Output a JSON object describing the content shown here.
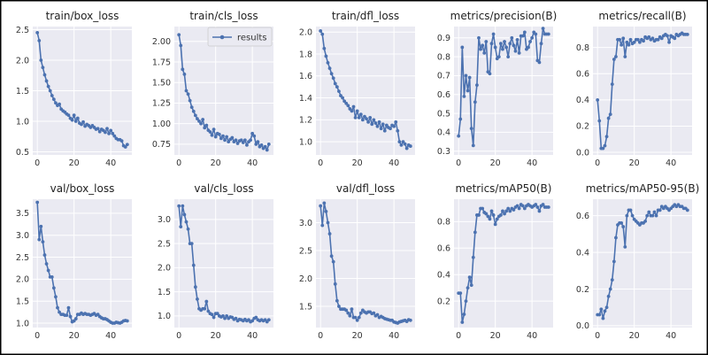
{
  "figure": {
    "legend_label": "results",
    "x_ticks": [
      "0",
      "20",
      "40"
    ]
  },
  "colors": {
    "line": "#4c72b0",
    "axes_bg": "#eaeaf2",
    "grid": "#ffffff",
    "border": "#000000"
  },
  "chart_data": [
    {
      "type": "line",
      "title": "train/box_loss",
      "xlabel": "",
      "ylabel": "",
      "xlim": [
        -2.5,
        51.5
      ],
      "ylim": [
        0.45,
        2.55
      ],
      "yticks": [
        0.5,
        1.0,
        1.5,
        2.0,
        2.5
      ],
      "ytick_labels": [
        "0.5",
        "1.0",
        "1.5",
        "2.0",
        "2.5"
      ],
      "series": [
        {
          "name": "results",
          "values": [
            2.45,
            2.32,
            2.0,
            1.88,
            1.76,
            1.66,
            1.57,
            1.5,
            1.42,
            1.36,
            1.3,
            1.26,
            1.28,
            1.2,
            1.17,
            1.15,
            1.12,
            1.1,
            1.05,
            1.02,
            1.1,
            1.0,
            1.05,
            0.97,
            0.95,
            0.99,
            0.92,
            0.95,
            0.93,
            0.9,
            0.93,
            0.9,
            0.87,
            0.88,
            0.83,
            0.87,
            0.85,
            0.82,
            0.88,
            0.8,
            0.85,
            0.8,
            0.76,
            0.72,
            0.7,
            0.7,
            0.68,
            0.6,
            0.58,
            0.62
          ]
        }
      ]
    },
    {
      "type": "line",
      "title": "train/cls_loss",
      "xlabel": "",
      "ylabel": "",
      "xlim": [
        -2.5,
        51.5
      ],
      "ylim": [
        0.62,
        2.18
      ],
      "yticks": [
        0.75,
        1.0,
        1.25,
        1.5,
        1.75,
        2.0
      ],
      "ytick_labels": [
        "0.75",
        "1.00",
        "1.25",
        "1.50",
        "1.75",
        "2.00"
      ],
      "show_legend": true,
      "series": [
        {
          "name": "results",
          "values": [
            2.08,
            1.95,
            1.66,
            1.6,
            1.4,
            1.36,
            1.28,
            1.2,
            1.15,
            1.1,
            1.06,
            1.03,
            1.0,
            1.05,
            0.95,
            0.98,
            0.92,
            0.9,
            0.86,
            0.93,
            0.84,
            0.88,
            0.87,
            0.82,
            0.85,
            0.8,
            0.84,
            0.78,
            0.81,
            0.83,
            0.78,
            0.8,
            0.76,
            0.79,
            0.8,
            0.77,
            0.8,
            0.74,
            0.78,
            0.8,
            0.88,
            0.85,
            0.75,
            0.78,
            0.72,
            0.74,
            0.7,
            0.72,
            0.68,
            0.75
          ]
        }
      ]
    },
    {
      "type": "line",
      "title": "train/dfl_loss",
      "xlabel": "",
      "ylabel": "",
      "xlim": [
        -2.5,
        51.5
      ],
      "ylim": [
        0.88,
        2.05
      ],
      "yticks": [
        1.0,
        1.2,
        1.4,
        1.6,
        1.8,
        2.0
      ],
      "ytick_labels": [
        "1.0",
        "1.2",
        "1.4",
        "1.6",
        "1.8",
        "2.0"
      ],
      "series": [
        {
          "name": "results",
          "values": [
            2.01,
            1.98,
            1.85,
            1.78,
            1.72,
            1.67,
            1.62,
            1.58,
            1.53,
            1.5,
            1.46,
            1.42,
            1.4,
            1.37,
            1.35,
            1.33,
            1.3,
            1.28,
            1.32,
            1.22,
            1.28,
            1.22,
            1.25,
            1.2,
            1.23,
            1.21,
            1.18,
            1.22,
            1.16,
            1.2,
            1.17,
            1.14,
            1.18,
            1.12,
            1.16,
            1.1,
            1.15,
            1.13,
            1.12,
            1.15,
            1.14,
            1.18,
            1.1,
            1.0,
            0.97,
            1.0,
            0.98,
            0.94,
            0.97,
            0.96
          ]
        }
      ]
    },
    {
      "type": "line",
      "title": "metrics/precision(B)",
      "xlabel": "",
      "ylabel": "",
      "xlim": [
        -2.5,
        51.5
      ],
      "ylim": [
        0.28,
        0.96
      ],
      "yticks": [
        0.3,
        0.4,
        0.5,
        0.6,
        0.7,
        0.8,
        0.9
      ],
      "ytick_labels": [
        "0.3",
        "0.4",
        "0.5",
        "0.6",
        "0.7",
        "0.8",
        "0.9"
      ],
      "series": [
        {
          "name": "results",
          "values": [
            0.38,
            0.47,
            0.85,
            0.59,
            0.7,
            0.62,
            0.69,
            0.42,
            0.33,
            0.56,
            0.65,
            0.9,
            0.84,
            0.86,
            0.82,
            0.88,
            0.72,
            0.71,
            0.87,
            0.92,
            0.85,
            0.79,
            0.8,
            0.87,
            0.84,
            0.88,
            0.85,
            0.8,
            0.87,
            0.9,
            0.86,
            0.83,
            0.89,
            0.82,
            0.91,
            0.91,
            0.93,
            0.84,
            0.85,
            0.88,
            0.9,
            0.93,
            0.92,
            0.78,
            0.77,
            0.87,
            0.95,
            0.92,
            0.92,
            0.92
          ]
        }
      ]
    },
    {
      "type": "line",
      "title": "metrics/recall(B)",
      "xlabel": "",
      "ylabel": "",
      "xlim": [
        -2.5,
        51.5
      ],
      "ylim": [
        -0.02,
        0.96
      ],
      "yticks": [
        0.0,
        0.2,
        0.4,
        0.6,
        0.8
      ],
      "ytick_labels": [
        "0.0",
        "0.2",
        "0.4",
        "0.6",
        "0.8"
      ],
      "series": [
        {
          "name": "results",
          "values": [
            0.4,
            0.24,
            0.03,
            0.03,
            0.05,
            0.12,
            0.26,
            0.29,
            0.52,
            0.71,
            0.73,
            0.86,
            0.86,
            0.82,
            0.87,
            0.73,
            0.84,
            0.82,
            0.86,
            0.83,
            0.84,
            0.86,
            0.86,
            0.84,
            0.86,
            0.85,
            0.88,
            0.87,
            0.88,
            0.86,
            0.87,
            0.85,
            0.86,
            0.86,
            0.88,
            0.87,
            0.89,
            0.9,
            0.89,
            0.84,
            0.89,
            0.88,
            0.87,
            0.9,
            0.89,
            0.9,
            0.91,
            0.9,
            0.9,
            0.9
          ]
        }
      ]
    },
    {
      "type": "line",
      "title": "val/box_loss",
      "xlabel": "",
      "ylabel": "",
      "xlim": [
        -2.5,
        51.5
      ],
      "ylim": [
        0.9,
        3.82
      ],
      "yticks": [
        1.0,
        1.5,
        2.0,
        2.5,
        3.0,
        3.5
      ],
      "ytick_labels": [
        "1.0",
        "1.5",
        "2.0",
        "2.5",
        "3.0",
        "3.5"
      ],
      "series": [
        {
          "name": "results",
          "values": [
            3.75,
            2.9,
            3.2,
            2.85,
            2.55,
            2.35,
            2.2,
            2.05,
            2.05,
            1.8,
            1.6,
            1.35,
            1.25,
            1.2,
            1.2,
            1.18,
            1.18,
            1.35,
            1.15,
            1.03,
            1.05,
            1.1,
            1.2,
            1.2,
            1.23,
            1.2,
            1.22,
            1.2,
            1.2,
            1.18,
            1.2,
            1.22,
            1.18,
            1.2,
            1.15,
            1.12,
            1.1,
            1.1,
            1.08,
            1.05,
            1.02,
            1.0,
            1.0,
            1.02,
            1.01,
            1.0,
            1.02,
            1.05,
            1.06,
            1.05
          ]
        }
      ]
    },
    {
      "type": "line",
      "title": "val/cls_loss",
      "xlabel": "",
      "ylabel": "",
      "xlim": [
        -2.5,
        51.5
      ],
      "ylim": [
        0.76,
        3.42
      ],
      "yticks": [
        1.0,
        1.5,
        2.0,
        2.5,
        3.0
      ],
      "ytick_labels": [
        "1.0",
        "1.5",
        "2.0",
        "2.5",
        "3.0"
      ],
      "series": [
        {
          "name": "results",
          "values": [
            3.28,
            2.85,
            3.28,
            3.1,
            2.95,
            2.8,
            2.5,
            2.5,
            2.05,
            1.6,
            1.35,
            1.15,
            1.12,
            1.15,
            1.15,
            1.3,
            1.1,
            1.05,
            1.03,
            0.97,
            1.05,
            1.05,
            1.0,
            0.98,
            1.0,
            0.95,
            1.0,
            0.95,
            0.98,
            0.97,
            0.93,
            0.95,
            0.9,
            0.93,
            0.92,
            0.9,
            0.93,
            0.9,
            0.92,
            0.88,
            0.9,
            0.95,
            0.97,
            0.92,
            0.9,
            0.92,
            0.9,
            0.92,
            0.88,
            0.92
          ]
        }
      ]
    },
    {
      "type": "line",
      "title": "val/dfl_loss",
      "xlabel": "",
      "ylabel": "",
      "xlim": [
        -2.5,
        51.5
      ],
      "ylim": [
        1.12,
        3.42
      ],
      "yticks": [
        1.5,
        2.0,
        2.5,
        3.0
      ],
      "ytick_labels": [
        "1.5",
        "2.0",
        "2.5",
        "3.0"
      ],
      "series": [
        {
          "name": "results",
          "values": [
            3.3,
            2.95,
            3.35,
            3.2,
            3.0,
            2.8,
            2.4,
            2.3,
            1.9,
            1.6,
            1.5,
            1.45,
            1.45,
            1.45,
            1.43,
            1.38,
            1.33,
            1.45,
            1.3,
            1.3,
            1.25,
            1.3,
            1.38,
            1.43,
            1.4,
            1.38,
            1.4,
            1.4,
            1.37,
            1.38,
            1.33,
            1.35,
            1.3,
            1.32,
            1.3,
            1.28,
            1.27,
            1.26,
            1.25,
            1.25,
            1.22,
            1.21,
            1.2,
            1.22,
            1.23,
            1.24,
            1.25,
            1.23,
            1.26,
            1.25
          ]
        }
      ]
    },
    {
      "type": "line",
      "title": "metrics/mAP50(B)",
      "xlabel": "",
      "ylabel": "",
      "xlim": [
        -2.5,
        51.5
      ],
      "ylim": [
        0.0,
        0.97
      ],
      "yticks": [
        0.2,
        0.4,
        0.6,
        0.8
      ],
      "ytick_labels": [
        "0.2",
        "0.4",
        "0.6",
        "0.8"
      ],
      "series": [
        {
          "name": "results",
          "values": [
            0.26,
            0.26,
            0.04,
            0.1,
            0.2,
            0.3,
            0.38,
            0.32,
            0.53,
            0.72,
            0.85,
            0.85,
            0.9,
            0.9,
            0.87,
            0.86,
            0.84,
            0.82,
            0.88,
            0.85,
            0.78,
            0.82,
            0.84,
            0.85,
            0.88,
            0.86,
            0.88,
            0.9,
            0.88,
            0.9,
            0.89,
            0.91,
            0.92,
            0.9,
            0.93,
            0.92,
            0.9,
            0.92,
            0.93,
            0.92,
            0.91,
            0.92,
            0.93,
            0.91,
            0.88,
            0.92,
            0.93,
            0.91,
            0.91,
            0.91
          ]
        }
      ]
    },
    {
      "type": "line",
      "title": "metrics/mAP50-95(B)",
      "xlabel": "",
      "ylabel": "",
      "xlim": [
        -2.5,
        51.5
      ],
      "ylim": [
        -0.01,
        0.69
      ],
      "yticks": [
        0.0,
        0.2,
        0.4,
        0.6
      ],
      "ytick_labels": [
        "0.0",
        "0.2",
        "0.4",
        "0.6"
      ],
      "series": [
        {
          "name": "results",
          "values": [
            0.06,
            0.06,
            0.09,
            0.04,
            0.08,
            0.1,
            0.16,
            0.2,
            0.25,
            0.35,
            0.48,
            0.55,
            0.56,
            0.56,
            0.54,
            0.43,
            0.6,
            0.63,
            0.63,
            0.6,
            0.58,
            0.57,
            0.56,
            0.55,
            0.56,
            0.56,
            0.57,
            0.6,
            0.62,
            0.6,
            0.6,
            0.62,
            0.6,
            0.63,
            0.63,
            0.65,
            0.64,
            0.65,
            0.64,
            0.63,
            0.64,
            0.65,
            0.66,
            0.65,
            0.66,
            0.65,
            0.65,
            0.64,
            0.64,
            0.63
          ]
        }
      ]
    }
  ]
}
